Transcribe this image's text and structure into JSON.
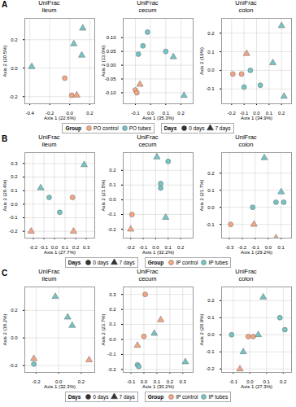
{
  "chart_data": [
    {
      "type": "scatter",
      "annotations": [
        "A"
      ],
      "title": "UniFrac\nileum",
      "xlabel": "Axis 1 (22.6%)",
      "ylabel": "Axis 2 (20.5%)",
      "xlim": [
        -0.45,
        0.25
      ],
      "ylim": [
        -0.25,
        0.35
      ],
      "xticks": [
        -0.4,
        -0.2,
        {
          "value": 0.0,
          "label": "0.0"
        },
        0.2
      ],
      "yticks": [
        -0.2,
        {
          "value": 0.0,
          "label": "0.0"
        },
        0.2
      ],
      "grid": true,
      "legends": [
        {
          "title": "Group",
          "entries": [
            {
              "name": "PO control",
              "color": "#F4A582",
              "marker": "circle"
            },
            {
              "name": "PO tubes",
              "color": "#74C4C4",
              "marker": "circle"
            }
          ]
        },
        {
          "title": "Days",
          "entries": [
            {
              "name": "0 days",
              "color": "#333333",
              "marker": "circle"
            },
            {
              "name": "7 days",
              "color": "#333333",
              "marker": "triangle"
            }
          ]
        }
      ],
      "series": [
        {
          "name": "PO control",
          "color": "#F4A582",
          "marker": "circle",
          "x": [
            -0.05,
            0.02
          ],
          "y": [
            -0.07,
            -0.19
          ]
        },
        {
          "name": "PO control",
          "color": "#F4A582",
          "marker": "triangle",
          "x": [
            0.07
          ],
          "y": [
            -0.19
          ]
        },
        {
          "name": "PO tubes",
          "color": "#74C4C4",
          "marker": "triangle",
          "x": [
            -0.38,
            0.04,
            0.12,
            0.13
          ],
          "y": [
            0.01,
            0.17,
            0.09,
            0.28
          ]
        }
      ]
    },
    {
      "type": "scatter",
      "title": "UniFrac\ncecum",
      "xlabel": "Axis 1 (35.3%)",
      "ylabel": "Axis 2 (13.6%)",
      "xlim": [
        -0.18,
        0.28
      ],
      "ylim": [
        -0.14,
        0.17
      ],
      "xticks": [
        -0.1,
        {
          "value": 0.0,
          "label": "0.0"
        },
        0.1,
        0.2
      ],
      "yticks": [
        {
          "value": -0.1,
          "label": "-0.10"
        },
        -0.05,
        {
          "value": 0.0,
          "label": "0.00"
        },
        0.05,
        {
          "value": 0.1,
          "label": "0.10"
        }
      ],
      "grid": true,
      "series": [
        {
          "name": "PO control",
          "color": "#F4A582",
          "marker": "circle",
          "x": [
            -0.1,
            -0.09
          ],
          "y": [
            -0.09,
            -0.1
          ]
        },
        {
          "name": "PO control",
          "color": "#F4A582",
          "marker": "triangle",
          "x": [
            -0.07
          ],
          "y": [
            -0.07
          ]
        },
        {
          "name": "PO tubes",
          "color": "#74C4C4",
          "marker": "circle",
          "x": [
            -0.05,
            -0.08,
            0.1,
            -0.02
          ],
          "y": [
            0.07,
            0.04,
            0.05,
            0.12
          ]
        },
        {
          "name": "PO tubes",
          "color": "#74C4C4",
          "marker": "triangle",
          "x": [
            0.15,
            0.22
          ],
          "y": [
            0.03,
            -0.11
          ]
        }
      ]
    },
    {
      "type": "scatter",
      "title": "UniFrac\ncolon",
      "xlabel": "Axis 1 (34.9%)",
      "ylabel": "Axis 2 (19%)",
      "xlim": [
        -0.28,
        0.28
      ],
      "ylim": [
        -0.18,
        0.28
      ],
      "xticks": [
        -0.2,
        -0.1,
        {
          "value": 0.0,
          "label": "0.0"
        },
        0.1,
        0.2
      ],
      "yticks": [
        -0.1,
        {
          "value": 0.0,
          "label": "0.0"
        },
        0.1,
        0.2
      ],
      "grid": true,
      "series": [
        {
          "name": "PO control",
          "color": "#F4A582",
          "marker": "circle",
          "x": [
            -0.19,
            -0.12
          ],
          "y": [
            -0.02,
            -0.02
          ]
        },
        {
          "name": "PO control",
          "color": "#F4A582",
          "marker": "triangle",
          "x": [
            -0.08
          ],
          "y": [
            0.09
          ]
        },
        {
          "name": "PO tubes",
          "color": "#74C4C4",
          "marker": "circle",
          "x": [
            -0.05,
            0.03,
            -0.1
          ],
          "y": [
            0.0,
            -0.08,
            -0.09
          ]
        },
        {
          "name": "PO tubes",
          "color": "#74C4C4",
          "marker": "triangle",
          "x": [
            0.13,
            0.2,
            0.22
          ],
          "y": [
            0.04,
            0.24,
            -0.14
          ]
        }
      ]
    },
    {
      "type": "scatter",
      "annotations": [
        "B"
      ],
      "title": "UniFrac\nileum",
      "xlabel": "Axis 1 (27.7%)",
      "ylabel": "Axis 2 (20.4%)",
      "xlim": [
        -0.28,
        0.38
      ],
      "ylim": [
        -0.25,
        0.38
      ],
      "xticks": [
        -0.2,
        -0.1,
        {
          "value": 0.0,
          "label": "0.0"
        },
        0.1,
        0.2,
        0.3
      ],
      "yticks": [
        -0.2,
        -0.1,
        {
          "value": 0.0,
          "label": "0.0"
        },
        0.1,
        0.2,
        0.3
      ],
      "grid": true,
      "legends": [
        {
          "title": "Days",
          "entries": [
            {
              "name": "0 days",
              "color": "#333333",
              "marker": "circle"
            },
            {
              "name": "7 days",
              "color": "#333333",
              "marker": "triangle"
            }
          ]
        },
        {
          "title": "Group",
          "entries": [
            {
              "name": "IP control",
              "color": "#F4A582",
              "marker": "circle"
            },
            {
              "name": "IP tubes",
              "color": "#74C4C4",
              "marker": "circle"
            }
          ]
        }
      ],
      "series": [
        {
          "name": "IP control",
          "color": "#F4A582",
          "marker": "triangle",
          "x": [
            -0.22,
            0.18
          ],
          "y": [
            -0.2,
            -0.2
          ]
        },
        {
          "name": "IP control",
          "color": "#F4A582",
          "marker": "circle",
          "x": [
            0.17
          ],
          "y": [
            0.05
          ]
        },
        {
          "name": "IP tubes",
          "color": "#74C4C4",
          "marker": "triangle",
          "x": [
            -0.13,
            0.28
          ],
          "y": [
            0.12,
            0.29
          ]
        },
        {
          "name": "IP tubes",
          "color": "#74C4C4",
          "marker": "circle",
          "x": [
            -0.05,
            0.05
          ],
          "y": [
            0.05,
            -0.06
          ]
        }
      ]
    },
    {
      "type": "scatter",
      "title": "UniFrac\ncecum",
      "xlabel": "Axis 1 (32.2%)",
      "ylabel": "Axis 2 (21.5%)",
      "xlim": [
        -0.26,
        0.3
      ],
      "ylim": [
        -0.26,
        0.32
      ],
      "xticks": [
        -0.2,
        -0.1,
        {
          "value": 0.0,
          "label": "0.0"
        },
        0.1,
        0.2
      ],
      "yticks": [
        -0.2,
        -0.1,
        {
          "value": 0.0,
          "label": "0.0"
        },
        0.1,
        0.2
      ],
      "grid": true,
      "series": [
        {
          "name": "IP control",
          "color": "#F4A582",
          "marker": "circle",
          "x": [
            -0.19
          ],
          "y": [
            -0.1
          ]
        },
        {
          "name": "IP control",
          "color": "#F4A582",
          "marker": "triangle",
          "x": [
            -0.2
          ],
          "y": [
            -0.2
          ]
        },
        {
          "name": "IP tubes",
          "color": "#74C4C4",
          "marker": "circle",
          "x": [
            0.04,
            0.04,
            0.1
          ],
          "y": [
            0.08,
            0.11,
            0.26
          ]
        },
        {
          "name": "IP tubes",
          "color": "#74C4C4",
          "marker": "triangle",
          "x": [
            0.08,
            0.01
          ],
          "y": [
            -0.12,
            0.29
          ]
        }
      ]
    },
    {
      "type": "scatter",
      "title": "UniFrac\ncolon",
      "xlabel": "Axis 1 (29.2%)",
      "ylabel": "Axis 2 (21.7%)",
      "xlim": [
        -0.36,
        0.18
      ],
      "ylim": [
        -0.18,
        0.32
      ],
      "xticks": [
        -0.3,
        -0.2,
        -0.1,
        {
          "value": 0.0,
          "label": "0.0"
        },
        0.1
      ],
      "yticks": [
        -0.1,
        {
          "value": 0.0,
          "label": "0.0"
        },
        0.1,
        0.2
      ],
      "grid": true,
      "series": [
        {
          "name": "IP control",
          "color": "#F4A582",
          "marker": "circle",
          "x": [
            -0.29
          ],
          "y": [
            -0.1
          ]
        },
        {
          "name": "IP control",
          "color": "#F4A582",
          "marker": "triangle",
          "x": [
            -0.11,
            0.06
          ],
          "y": [
            -0.1,
            -0.18
          ]
        },
        {
          "name": "IP tubes",
          "color": "#74C4C4",
          "marker": "circle",
          "x": [
            -0.12,
            0.06,
            0.12
          ],
          "y": [
            0.0,
            0.03,
            0.03
          ]
        },
        {
          "name": "IP tubes",
          "color": "#74C4C4",
          "marker": "triangle",
          "x": [
            0.1,
            -0.03
          ],
          "y": [
            0.09,
            0.29
          ]
        }
      ]
    },
    {
      "type": "scatter",
      "annotations": [
        "C"
      ],
      "title": "UniFrac\nileum",
      "xlabel": "Axis 1 (32.3%)",
      "ylabel": "Axis 2 (18.2%)",
      "xlim": [
        -0.3,
        0.32
      ],
      "ylim": [
        -0.25,
        0.37
      ],
      "xticks": [
        -0.2,
        {
          "value": 0.0,
          "label": "0.0"
        },
        0.2
      ],
      "yticks": [
        -0.2,
        {
          "value": 0.0,
          "label": "0.0"
        },
        0.2
      ],
      "grid": true,
      "legends": [
        {
          "title": "Days",
          "entries": [
            {
              "name": "0 days",
              "color": "#333333",
              "marker": "circle"
            },
            {
              "name": "7 days",
              "color": "#333333",
              "marker": "triangle"
            }
          ]
        },
        {
          "title": "Group",
          "entries": [
            {
              "name": "IP control",
              "color": "#F4A582",
              "marker": "circle"
            },
            {
              "name": "IP tubes",
              "color": "#74C4C4",
              "marker": "circle"
            }
          ]
        }
      ],
      "series": [
        {
          "name": "IP control",
          "color": "#F4A582",
          "marker": "triangle",
          "x": [
            -0.22,
            0.27
          ],
          "y": [
            -0.15,
            -0.16
          ]
        },
        {
          "name": "IP tubes",
          "color": "#74C4C4",
          "marker": "circle",
          "x": [
            -0.22
          ],
          "y": [
            -0.19
          ]
        },
        {
          "name": "IP tubes",
          "color": "#74C4C4",
          "marker": "triangle",
          "x": [
            0.08,
            0.12,
            -0.03
          ],
          "y": [
            0.15,
            0.09,
            0.3
          ]
        }
      ]
    },
    {
      "type": "scatter",
      "title": "UniFrac\ncecum",
      "xlabel": "Axis 1 (30.2%)",
      "ylabel": "Axis 2 (23.7%)",
      "xlim": [
        -0.16,
        0.38
      ],
      "ylim": [
        -0.22,
        0.35
      ],
      "xticks": [
        -0.1,
        {
          "value": 0.0,
          "label": "0.0"
        },
        0.1,
        0.2,
        0.3
      ],
      "yticks": [
        -0.2,
        -0.1,
        {
          "value": 0.0,
          "label": "0.0"
        },
        0.1,
        0.2,
        0.3
      ],
      "grid": true,
      "series": [
        {
          "name": "IP control",
          "color": "#F4A582",
          "marker": "circle",
          "x": [
            0.0,
            0.01
          ],
          "y": [
            0.02,
            0.3
          ]
        },
        {
          "name": "IP control",
          "color": "#F4A582",
          "marker": "triangle",
          "x": [
            -0.05,
            0.13
          ],
          "y": [
            -0.04,
            0.13
          ]
        },
        {
          "name": "IP tubes",
          "color": "#74C4C4",
          "marker": "circle",
          "x": [
            -0.05,
            -0.04
          ],
          "y": [
            -0.17,
            -0.18
          ]
        },
        {
          "name": "IP tubes",
          "color": "#74C4C4",
          "marker": "triangle",
          "x": [
            0.08,
            0.32
          ],
          "y": [
            0.04,
            -0.15
          ]
        }
      ]
    },
    {
      "type": "scatter",
      "title": "UniFrac\ncolon",
      "xlabel": "Axis 1 (27.3%)",
      "ylabel": "Axis 2 (20.9%)",
      "xlim": [
        -0.17,
        0.25
      ],
      "ylim": [
        -0.22,
        0.28
      ],
      "xticks": [
        -0.1,
        {
          "value": 0.0,
          "label": "0.0"
        },
        0.1,
        0.2
      ],
      "yticks": [
        -0.2,
        -0.1,
        {
          "value": 0.0,
          "label": "0.0"
        },
        0.1,
        0.2
      ],
      "grid": true,
      "series": [
        {
          "name": "IP control",
          "color": "#F4A582",
          "marker": "circle",
          "x": [
            -0.01,
            0.02
          ],
          "y": [
            -0.01,
            -0.01
          ]
        },
        {
          "name": "IP control",
          "color": "#F4A582",
          "marker": "triangle",
          "x": [
            -0.06
          ],
          "y": [
            -0.2
          ]
        },
        {
          "name": "IP tubes",
          "color": "#74C4C4",
          "marker": "circle",
          "x": [
            -0.11,
            0.18,
            0.21
          ],
          "y": [
            0.0,
            0.1,
            0.03
          ]
        },
        {
          "name": "IP tubes",
          "color": "#74C4C4",
          "marker": "triangle",
          "x": [
            0.05,
            -0.04,
            0.08
          ],
          "y": [
            0.0,
            -0.1,
            0.22
          ]
        }
      ]
    }
  ]
}
